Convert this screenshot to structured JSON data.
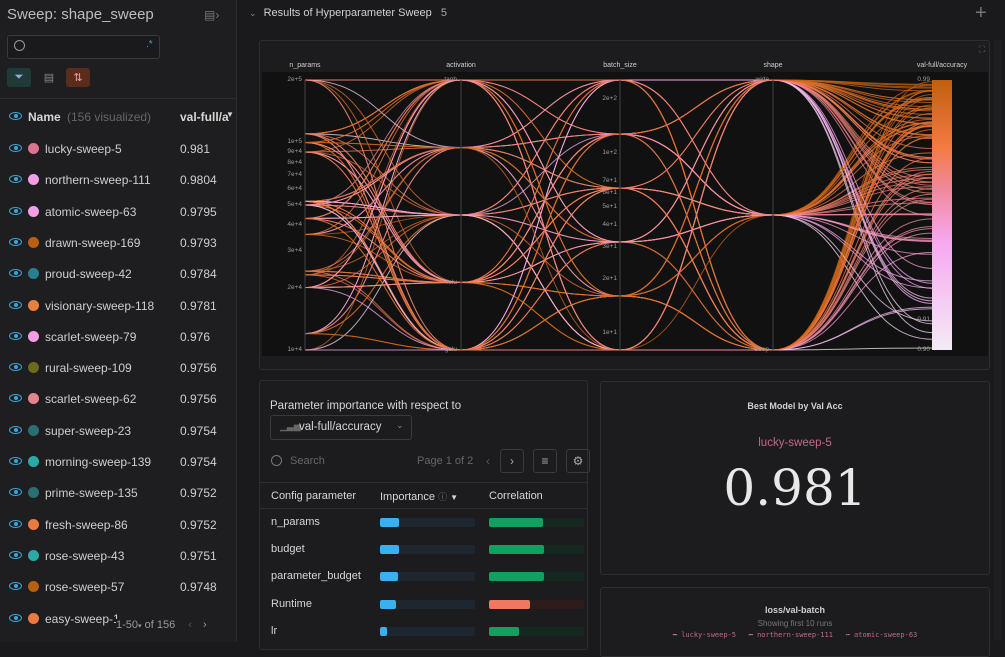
{
  "sidebar": {
    "title": "Sweep: shape_sweep",
    "search_placeholder": "",
    "header": {
      "name": "Name",
      "visualized": "(156 visualized)",
      "metric": "val-full/a"
    },
    "runs": [
      {
        "name": "lucky-sweep-5",
        "value": "0.981",
        "color": "#d9758f"
      },
      {
        "name": "northern-sweep-111",
        "value": "0.9804",
        "color": "#f59ee6"
      },
      {
        "name": "atomic-sweep-63",
        "value": "0.9795",
        "color": "#f59ee6"
      },
      {
        "name": "drawn-sweep-169",
        "value": "0.9793",
        "color": "#b85f12"
      },
      {
        "name": "proud-sweep-42",
        "value": "0.9784",
        "color": "#2a7f8f"
      },
      {
        "name": "visionary-sweep-118",
        "value": "0.9781",
        "color": "#e98040"
      },
      {
        "name": "scarlet-sweep-79",
        "value": "0.976",
        "color": "#f59ee6"
      },
      {
        "name": "rural-sweep-109",
        "value": "0.9756",
        "color": "#6b6a1e"
      },
      {
        "name": "scarlet-sweep-62",
        "value": "0.9756",
        "color": "#e5848c"
      },
      {
        "name": "super-sweep-23",
        "value": "0.9754",
        "color": "#2a6f72"
      },
      {
        "name": "morning-sweep-139",
        "value": "0.9754",
        "color": "#2aa9a9"
      },
      {
        "name": "prime-sweep-135",
        "value": "0.9752",
        "color": "#2a6f72"
      },
      {
        "name": "fresh-sweep-86",
        "value": "0.9752",
        "color": "#ea7a40"
      },
      {
        "name": "rose-sweep-43",
        "value": "0.9751",
        "color": "#2aa9a9"
      },
      {
        "name": "rose-sweep-57",
        "value": "0.9748",
        "color": "#b85f12"
      },
      {
        "name": "easy-sweep-1",
        "value": "",
        "color": "#ea7a40"
      }
    ],
    "pagination": {
      "range": "1-50",
      "of": "of 156"
    }
  },
  "section": {
    "title": "Results of Hyperparameter Sweep",
    "count": "5"
  },
  "parallel": {
    "axes": [
      {
        "label": "n_params",
        "type": "log",
        "range": [
          10000,
          200000
        ],
        "ticks": [
          "1e+4",
          "2e+4",
          "3e+4",
          "4e+4",
          "5e+4",
          "6e+4",
          "7e+4",
          "8e+4",
          "9e+4",
          "1e+5",
          "2e+5"
        ],
        "tick_values": [
          10000,
          20000,
          30000,
          40000,
          50000,
          60000,
          70000,
          80000,
          90000,
          100000,
          200000
        ]
      },
      {
        "label": "activation",
        "type": "categorical",
        "categories": [
          "tanh",
          "",
          "",
          "relu",
          "gelu"
        ]
      },
      {
        "label": "batch_size",
        "type": "log",
        "range": [
          8,
          256
        ],
        "ticks": [
          "1e+1",
          "2e+1",
          "3e+1",
          "4e+1",
          "5e+1",
          "6e+1",
          "7e+1",
          "1e+2",
          "2e+2"
        ],
        "tick_values": [
          10,
          20,
          30,
          40,
          50,
          60,
          70,
          100,
          200
        ]
      },
      {
        "label": "shape",
        "type": "categorical",
        "categories": [
          "wide",
          "",
          "deep"
        ]
      },
      {
        "label": "val-full/accuracy",
        "type": "linear",
        "range": [
          0.9,
          0.99
        ],
        "ticks": [
          "0.90",
          "0.91",
          "0.99"
        ],
        "tick_values": [
          0.9,
          0.91,
          0.99
        ]
      }
    ],
    "colorscale": [
      "#f3eaf6",
      "#f7a8f0",
      "#f0889a",
      "#f47a44",
      "#c0600e"
    ]
  },
  "importance": {
    "title": "Parameter importance with respect to",
    "metric": "val-full/accuracy",
    "search_placeholder": "Search",
    "page": "Page 1 of 2",
    "columns": [
      "Config parameter",
      "Importance",
      "Correlation"
    ],
    "rows": [
      {
        "param": "n_params",
        "importance": 0.2,
        "correlation": 0.57
      },
      {
        "param": "budget",
        "importance": 0.2,
        "correlation": 0.58
      },
      {
        "param": "parameter_budget",
        "importance": 0.19,
        "correlation": 0.58
      },
      {
        "param": "Runtime",
        "importance": 0.17,
        "correlation": -0.43
      },
      {
        "param": "lr",
        "importance": 0.07,
        "correlation": 0.32
      }
    ],
    "colors": {
      "importance": "#3ab0ef",
      "positive": "#12a060",
      "negative": "#f07860"
    }
  },
  "best_model": {
    "title": "Best Model by Val Acc",
    "run": "lucky-sweep-5",
    "value": "0.981"
  },
  "loss_panel": {
    "title": "loss/val-batch",
    "subtitle": "Showing first 10 runs",
    "legend": [
      "lucky-sweep-5",
      "northern-sweep-111",
      "atomic-sweep-63"
    ]
  }
}
